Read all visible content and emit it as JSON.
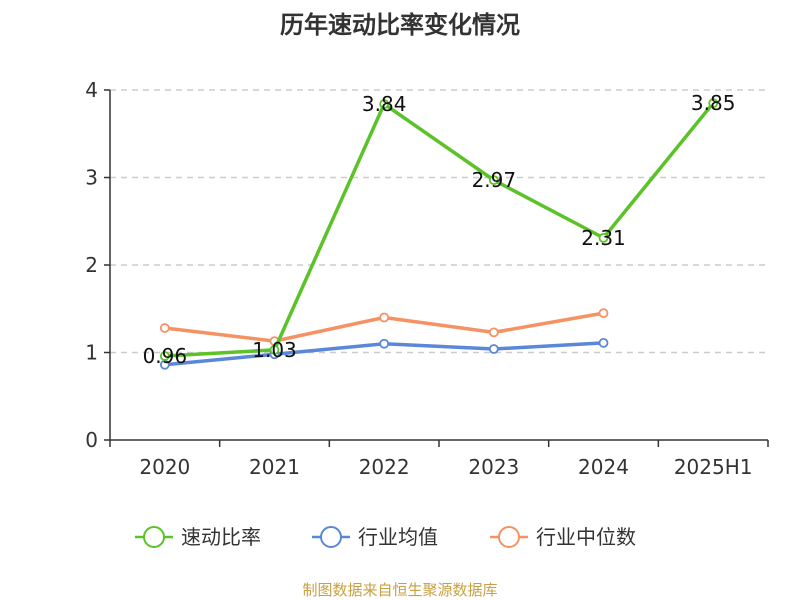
{
  "chart_data": {
    "type": "line",
    "title": "历年速动比率变化情况",
    "categories": [
      "2020",
      "2021",
      "2022",
      "2023",
      "2024",
      "2025H1"
    ],
    "y_ticks": [
      "0",
      "1",
      "2",
      "3",
      "4"
    ],
    "ylim": [
      0,
      4
    ],
    "grid": true,
    "legend_position": "bottom",
    "series": [
      {
        "name": "速动比率",
        "color": "#5bc227",
        "values": [
          0.96,
          1.03,
          3.84,
          2.97,
          2.31,
          3.85
        ],
        "labels": [
          "0.96",
          "1.03",
          "3.84",
          "2.97",
          "2.31",
          "3.85"
        ]
      },
      {
        "name": "行业均值",
        "color": "#5b87d9",
        "values": [
          0.86,
          0.98,
          1.1,
          1.04,
          1.11,
          null
        ]
      },
      {
        "name": "行业中位数",
        "color": "#f59263",
        "values": [
          1.28,
          1.13,
          1.4,
          1.23,
          1.45,
          null
        ]
      }
    ]
  },
  "footer": {
    "source": "制图数据来自恒生聚源数据库",
    "color": "#c8a042"
  }
}
